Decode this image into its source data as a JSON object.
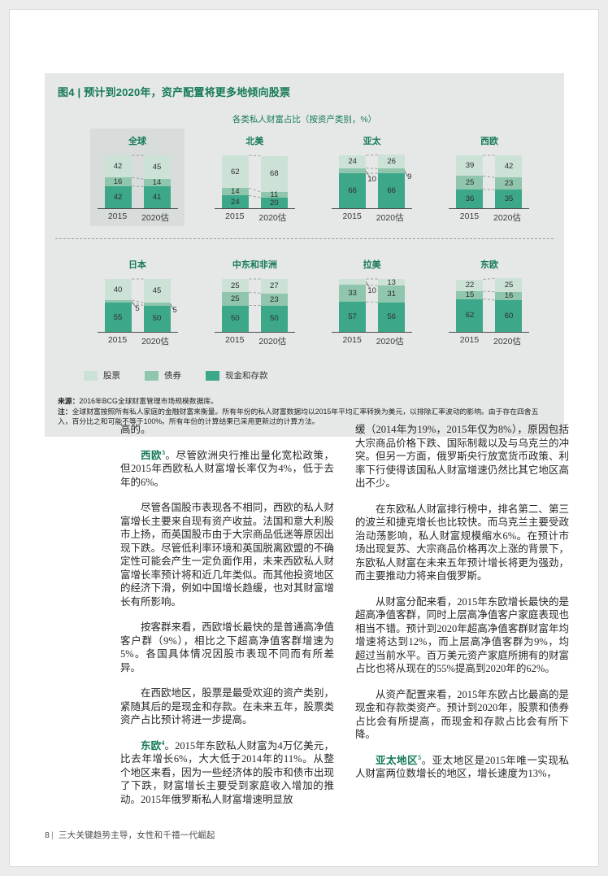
{
  "page": {
    "figure": {
      "title": "图4 | 预计到2020年，资产配置将更多地倾向股票",
      "subtitle": "各类私人财富占比（按资产类别，%）",
      "source_label": "来源：",
      "source_text": "2016年BCG全球财富管理市场规模数据库。",
      "note_label": "注：",
      "note_text": "全球财富按照所有私人家庭的金融财富来衡量。所有年份的私人财富数据均以2015年平均汇率转换为美元，以排除汇率波动的影响。由于存在四舍五入，百分比之和可能不等于100%。所有年份的计算结果已采用更新过的计算方法。"
    },
    "footer": {
      "page_number": "8",
      "text": "三大关键趋势主导，女性和千禧一代崛起"
    }
  },
  "chart_data": {
    "type": "bar",
    "stacked": true,
    "title": "各类私人财富占比（按资产类别，%）",
    "categories": [
      "2015",
      "2020估"
    ],
    "legend": [
      "股票",
      "债券",
      "现金和存款"
    ],
    "segment_order_top_to_bottom": [
      "股票",
      "债券",
      "现金和存款"
    ],
    "colors": [
      "#cde2d7",
      "#8fc6ad",
      "#3da78a"
    ],
    "unit": "%",
    "ylim": [
      0,
      100
    ],
    "charts": [
      {
        "name": "全球",
        "highlight": true,
        "bars": [
          [
            42,
            16,
            42
          ],
          [
            45,
            14,
            41
          ]
        ],
        "callouts": []
      },
      {
        "name": "北美",
        "highlight": false,
        "bars": [
          [
            62,
            14,
            24
          ],
          [
            68,
            11,
            20
          ]
        ],
        "callouts": []
      },
      {
        "name": "亚太",
        "highlight": false,
        "bars": [
          [
            24,
            10,
            66
          ],
          [
            26,
            9,
            66
          ]
        ],
        "callouts": [
          {
            "bar": 0,
            "seg": 1,
            "pos": "gap"
          },
          {
            "bar": 1,
            "seg": 1,
            "pos": "right"
          }
        ]
      },
      {
        "name": "西欧",
        "highlight": false,
        "bars": [
          [
            39,
            25,
            36
          ],
          [
            42,
            23,
            35
          ]
        ],
        "callouts": []
      },
      {
        "name": "日本",
        "highlight": false,
        "bars": [
          [
            40,
            5,
            55
          ],
          [
            45,
            5,
            50
          ]
        ],
        "callouts": [
          {
            "bar": 0,
            "seg": 1,
            "pos": "gap"
          },
          {
            "bar": 1,
            "seg": 1,
            "pos": "right"
          }
        ]
      },
      {
        "name": "中东和非洲",
        "highlight": false,
        "bars": [
          [
            25,
            25,
            50
          ],
          [
            27,
            23,
            50
          ]
        ],
        "callouts": []
      },
      {
        "name": "拉美",
        "highlight": false,
        "bars": [
          [
            10,
            33,
            57
          ],
          [
            13,
            31,
            56
          ]
        ],
        "callouts": [
          {
            "bar": 0,
            "seg": 0,
            "pos": "gap"
          }
        ]
      },
      {
        "name": "东欧",
        "highlight": false,
        "bars": [
          [
            22,
            15,
            62
          ],
          [
            25,
            16,
            60
          ]
        ],
        "callouts": []
      }
    ]
  },
  "body": {
    "left": [
      {
        "indent": false,
        "text": "高的。"
      },
      {
        "indent": true,
        "lead": "西欧",
        "sup": "3",
        "text": "。尽管欧洲央行推出量化宽松政策，但2015年西欧私人财富增长率仅为4%，低于去年的6%。"
      },
      {
        "indent": true,
        "text": "尽管各国股市表现各不相同，西欧的私人财富增长主要来自现有资产收益。法国和意大利股市上扬，而英国股市由于大宗商品低迷等原因出现下跌。尽管低利率环境和英国脱离欧盟的不确定性可能会产生一定负面作用，未来西欧私人财富增长率预计将和近几年类似。而其他投资地区的经济下滑，例如中国增长趋缓，也对其财富增长有所影响。"
      },
      {
        "indent": true,
        "text": "按客群来看，西欧增长最快的是普通高净值客户群（9%），相比之下超高净值客群增速为5%。各国具体情况因股市表现不同而有所差异。"
      },
      {
        "indent": true,
        "text": "在西欧地区，股票是最受欢迎的资产类别，紧随其后的是现金和存款。在未来五年，股票类资产占比预计将进一步提高。"
      },
      {
        "indent": true,
        "lead": "东欧",
        "sup": "4",
        "text": "。2015年东欧私人财富为4万亿美元，比去年增长6%，大大低于2014年的11%。从整个地区来看，因为一些经济体的股市和债市出现了下跌，财富增长主要受到家庭收入增加的推动。2015年俄罗斯私人财富增速明显放"
      }
    ],
    "right": [
      {
        "indent": false,
        "text": "缓（2014年为19%，2015年仅为8%），原因包括大宗商品价格下跌、国际制裁以及与乌克兰的冲突。但另一方面，俄罗斯央行放宽货币政策、利率下行使得该国私人财富增速仍然比其它地区高出不少。"
      },
      {
        "indent": true,
        "text": "在东欧私人财富排行榜中，排名第二、第三的波兰和捷克增长也比较快。而乌克兰主要受政治动荡影响，私人财富规模缩水6%。在预计市场出现复苏、大宗商品价格再次上涨的背景下，东欧私人财富在未来五年预计增长将更为强劲，而主要推动力将来自俄罗斯。"
      },
      {
        "indent": true,
        "text": "从财富分配来看，2015年东欧增长最快的是超高净值客群，同时上层高净值客户家庭表现也相当不错。预计到2020年超高净值客群财富年均增速将达到12%，而上层高净值客群为9%，均超过当前水平。百万美元资产家庭所拥有的财富占比也将从现在的55%提高到2020年的62%。"
      },
      {
        "indent": true,
        "text": "从资产配置来看，2015年东欧占比最高的是现金和存款类资产。预计到2020年，股票和债券占比会有所提高，而现金和存款占比会有所下降。"
      },
      {
        "indent": true,
        "lead": "亚太地区",
        "sup": "5",
        "text": "。亚太地区是2015年唯一实现私人财富两位数增长的地区，增长速度为13%，"
      }
    ]
  }
}
